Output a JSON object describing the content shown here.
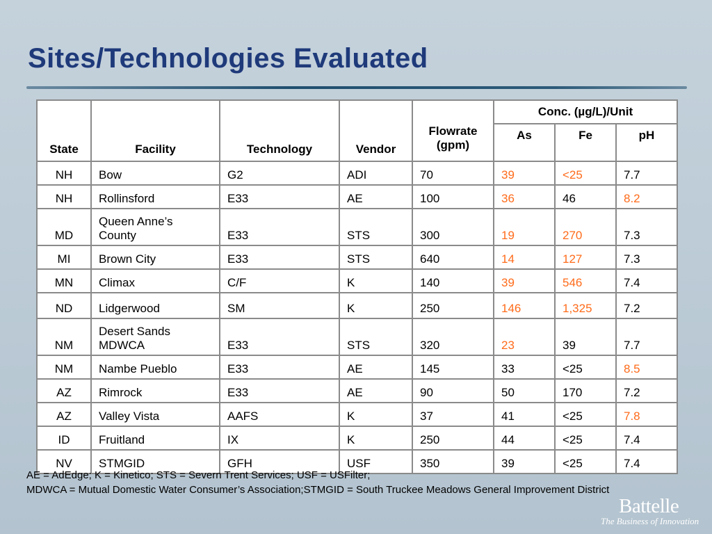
{
  "title": "Sites/Technologies Evaluated",
  "table": {
    "headers": {
      "state": "State",
      "facility": "Facility",
      "technology": "Technology",
      "vendor": "Vendor",
      "flowrate_line1": "Flowrate",
      "flowrate_line2": "(gpm)",
      "conc_group": "Conc. (µg/L)/Unit",
      "as": "As",
      "fe": "Fe",
      "ph": "pH"
    },
    "highlight_color": "#ff6b1a",
    "rows": [
      {
        "state": "NH",
        "facility": "Bow",
        "technology": "G2",
        "vendor": "ADI",
        "flowrate": "70",
        "as": "39",
        "fe": "<25",
        "ph": "7.7",
        "as_hl": true,
        "fe_hl": true,
        "ph_hl": false
      },
      {
        "state": "NH",
        "facility": "Rollinsford",
        "technology": "E33",
        "vendor": "AE",
        "flowrate": "100",
        "as": "36",
        "fe": "46",
        "ph": "8.2",
        "as_hl": true,
        "fe_hl": false,
        "ph_hl": true
      },
      {
        "state": "MD",
        "facility_line1": "Queen Anne’s",
        "facility_line2": "County",
        "technology": "E33",
        "vendor": "STS",
        "flowrate": "300",
        "as": "19",
        "fe": "270",
        "ph": "7.3",
        "as_hl": true,
        "fe_hl": true,
        "ph_hl": false
      },
      {
        "state": "MI",
        "facility": "Brown City",
        "technology": "E33",
        "vendor": "STS",
        "flowrate": "640",
        "as": "14",
        "fe": "127",
        "ph": "7.3",
        "as_hl": true,
        "fe_hl": true,
        "ph_hl": false
      },
      {
        "state": "MN",
        "facility": "Climax",
        "technology": "C/F",
        "vendor": "K",
        "flowrate": "140",
        "as": "39",
        "fe": "546",
        "ph": "7.4",
        "as_hl": true,
        "fe_hl": true,
        "ph_hl": false
      },
      {
        "state": "ND",
        "facility": "Lidgerwood",
        "technology": "SM",
        "vendor": "K",
        "flowrate": "250",
        "as": "146",
        "fe": "1,325",
        "ph": "7.2",
        "as_hl": true,
        "fe_hl": true,
        "ph_hl": false
      },
      {
        "state": "NM",
        "facility_line1": "Desert Sands",
        "facility_line2": "MDWCA",
        "technology": "E33",
        "vendor": "STS",
        "flowrate": "320",
        "as": "23",
        "fe": "39",
        "ph": "7.7",
        "as_hl": true,
        "fe_hl": false,
        "ph_hl": false
      },
      {
        "state": "NM",
        "facility": "Nambe Pueblo",
        "technology": "E33",
        "vendor": "AE",
        "flowrate": "145",
        "as": "33",
        "fe": "<25",
        "ph": "8.5",
        "as_hl": false,
        "fe_hl": false,
        "ph_hl": true
      },
      {
        "state": "AZ",
        "facility": "Rimrock",
        "technology": "E33",
        "vendor": "AE",
        "flowrate": "90",
        "as": "50",
        "fe": "170",
        "ph": "7.2",
        "as_hl": false,
        "fe_hl": false,
        "ph_hl": false
      },
      {
        "state": "AZ",
        "facility": "Valley Vista",
        "technology": "AAFS",
        "vendor": "K",
        "flowrate": "37",
        "as": "41",
        "fe": "<25",
        "ph": "7.8",
        "as_hl": false,
        "fe_hl": false,
        "ph_hl": true
      },
      {
        "state": "ID",
        "facility": "Fruitland",
        "technology": "IX",
        "vendor": "K",
        "flowrate": "250",
        "as": "44",
        "fe": "<25",
        "ph": "7.4",
        "as_hl": false,
        "fe_hl": false,
        "ph_hl": false
      },
      {
        "state": "NV",
        "facility": "STMGID",
        "technology": "GFH",
        "vendor": "USF",
        "flowrate": "350",
        "as": "39",
        "fe": "<25",
        "ph": "7.4",
        "as_hl": false,
        "fe_hl": false,
        "ph_hl": false
      }
    ]
  },
  "footnotes": {
    "line1": "AE = AdEdge; K = Kinetico; STS = Severn Trent Services; USF = USFilter;",
    "line2": "MDWCA = Mutual Domestic Water Consumer’s Association;STMGID = South Truckee Meadows General Improvement District"
  },
  "brand": {
    "logo_text": "Battelle",
    "tagline": "The Business of Innovation"
  }
}
